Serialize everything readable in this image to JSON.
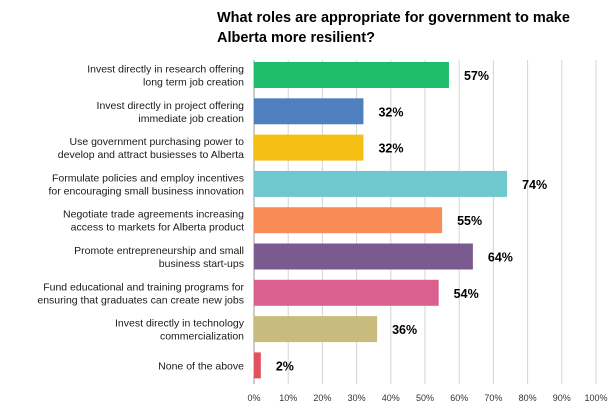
{
  "chart_data": {
    "type": "bar",
    "orientation": "horizontal",
    "title": "What roles are appropriate for government to make Alberta more resilient?",
    "xlabel": "",
    "ylabel": "",
    "xlim": [
      0,
      100
    ],
    "x_ticks": [
      "0%",
      "10%",
      "20%",
      "30%",
      "40%",
      "50%",
      "60%",
      "70%",
      "80%",
      "90%",
      "100%"
    ],
    "grid": true,
    "legend": "none",
    "bars": [
      {
        "label": [
          "Invest directly in research offering",
          "long term job creation"
        ],
        "value": 57,
        "value_label": "57%",
        "color": "#1dbd6c"
      },
      {
        "label": [
          "Invest directly in project offering",
          "immediate job creation"
        ],
        "value": 32,
        "value_label": "32%",
        "color": "#4f7fbf"
      },
      {
        "label": [
          "Use government purchasing power to",
          "develop and attract busiesses to Alberta"
        ],
        "value": 32,
        "value_label": "32%",
        "color": "#f5bf14"
      },
      {
        "label": [
          "Formulate policies and employ incentives",
          "for encouraging small business innovation"
        ],
        "value": 74,
        "value_label": "74%",
        "color": "#6ec8cd"
      },
      {
        "label": [
          "Negotiate trade agreements increasing",
          "access to markets for Alberta product"
        ],
        "value": 55,
        "value_label": "55%",
        "color": "#f98c56"
      },
      {
        "label": [
          "Promote entrepreneurship and small",
          "business start-ups"
        ],
        "value": 64,
        "value_label": "64%",
        "color": "#7a5a8f"
      },
      {
        "label": [
          "Fund educational and training programs for",
          "ensuring that graduates can create new jobs"
        ],
        "value": 54,
        "value_label": "54%",
        "color": "#d9608f"
      },
      {
        "label": [
          "Invest directly in technology",
          "commercialization"
        ],
        "value": 36,
        "value_label": "36%",
        "color": "#c8bb7d"
      },
      {
        "label": [
          "None of the above"
        ],
        "value": 2,
        "value_label": "2%",
        "color": "#e0535c"
      }
    ]
  }
}
